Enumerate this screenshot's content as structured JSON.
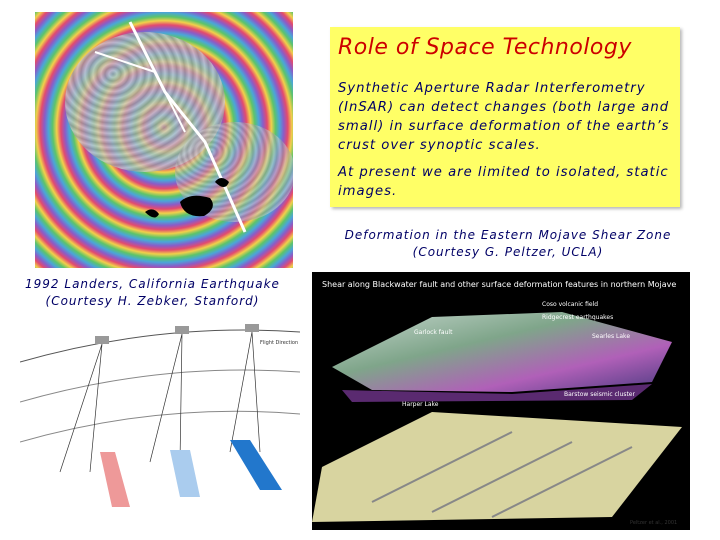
{
  "slide": {
    "title": "Role of Space Technology",
    "paragraphs": [
      [
        "Synthetic Aperture Radar Interferometry",
        "(InSAR) can detect changes (both large and",
        "small) in surface deformation of the earth’s",
        "crust over synoptic scales."
      ],
      [
        "At present we are limited to isolated, static",
        "images."
      ]
    ],
    "right_caption": [
      "Deformation in the Eastern Mojave Shear Zone",
      "(Courtesy G. Peltzer, UCLA)"
    ],
    "left_caption": [
      "1992 Landers, California Earthquake",
      "(Courtesy H. Zebker, Stanford)"
    ],
    "mojave_image": {
      "heading": "Shear along Blackwater fault and other surface deformation features in northern Mojave",
      "labels": [
        "Coso volcanic field",
        "Ridgecrest earthquakes",
        "Searles Lake",
        "Garlock fault",
        "Harper Lake",
        "Barstow seismic cluster",
        "Peltzer et al., 2001"
      ]
    },
    "diagram": {
      "labels": [
        "Flight Direction"
      ]
    }
  }
}
